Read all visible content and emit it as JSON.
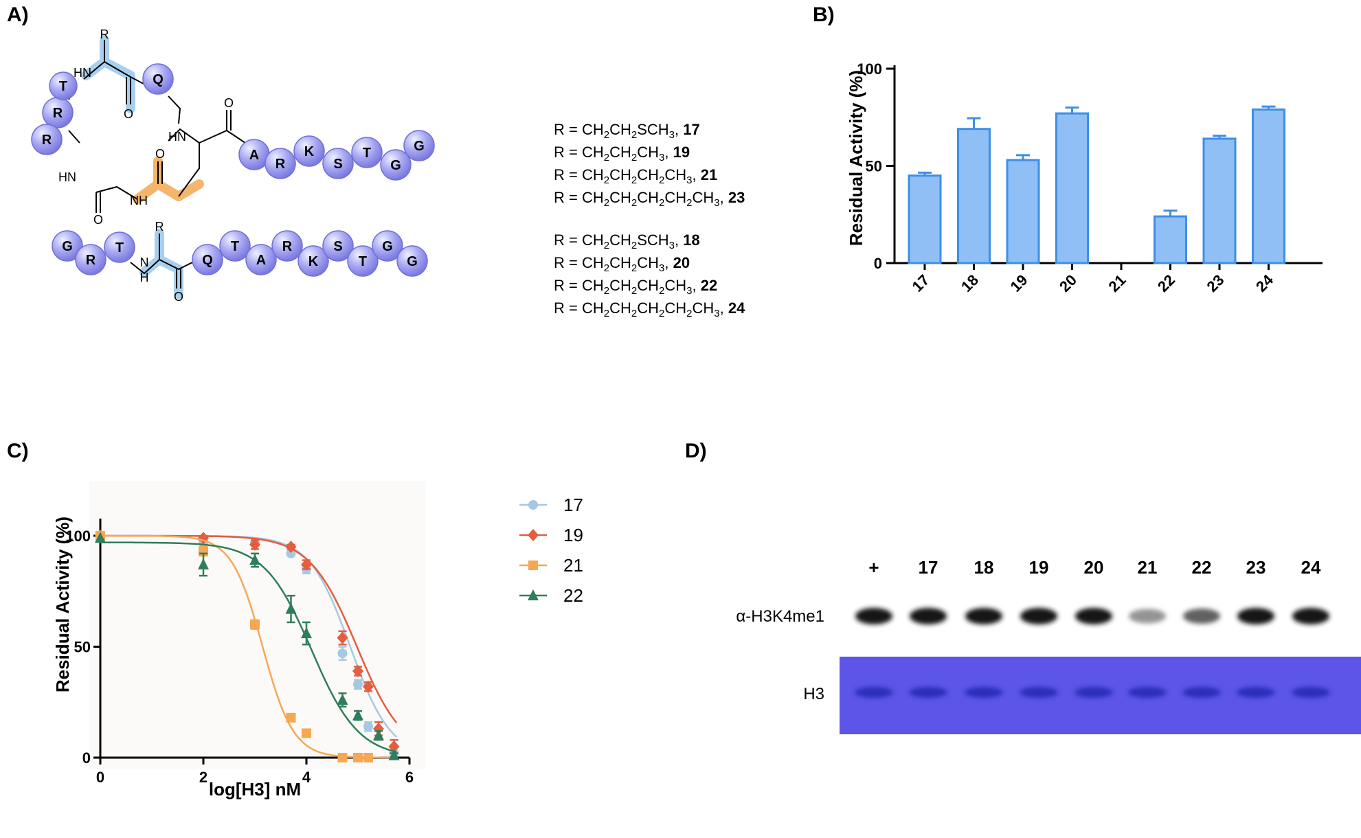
{
  "panels": {
    "a": "A)",
    "b": "B)",
    "c": "C)",
    "d": "D)"
  },
  "structure": {
    "cyclic_residues": [
      "R",
      "Q",
      "T",
      "R",
      "A",
      "R",
      "K",
      "S",
      "T",
      "G",
      "G"
    ],
    "cyclic_groups": [
      "HN",
      "HN",
      "HN",
      "NH",
      "O",
      "O",
      "O",
      "O"
    ],
    "linear_residues": [
      "G",
      "R",
      "T",
      "R",
      "Q",
      "T",
      "A",
      "R",
      "K",
      "S",
      "T",
      "G",
      "G"
    ],
    "linear_groups": [
      "N",
      "H",
      "O"
    ],
    "colors": {
      "residue": "#9c9cf0",
      "blue_highlight": "#a8d0ee",
      "orange_highlight": "#f5b56b"
    }
  },
  "r_groups": {
    "group1": [
      {
        "prefix": "R = CH",
        "chain": [
          "2",
          "CH",
          "2",
          "SCH",
          "3"
        ],
        "num": "17"
      },
      {
        "prefix": "R = CH",
        "chain": [
          "2",
          "CH",
          "2",
          "CH",
          "3"
        ],
        "num": "19"
      },
      {
        "prefix": "R = CH",
        "chain": [
          "2",
          "CH",
          "2",
          "CH",
          "2",
          "CH",
          "3"
        ],
        "num": "21"
      },
      {
        "prefix": "R = CH",
        "chain": [
          "2",
          "CH",
          "2",
          "CH",
          "2",
          "CH",
          "2",
          "CH",
          "3"
        ],
        "num": "23"
      }
    ],
    "group2": [
      {
        "prefix": "R = CH",
        "chain": [
          "2",
          "CH",
          "2",
          "SCH",
          "3"
        ],
        "num": "18"
      },
      {
        "prefix": "R = CH",
        "chain": [
          "2",
          "CH",
          "2",
          "CH",
          "3"
        ],
        "num": "20"
      },
      {
        "prefix": "R = CH",
        "chain": [
          "2",
          "CH",
          "2",
          "CH",
          "2",
          "CH",
          "3"
        ],
        "num": "22"
      },
      {
        "prefix": "R = CH",
        "chain": [
          "2",
          "CH",
          "2",
          "CH",
          "2",
          "CH",
          "2",
          "CH",
          "3"
        ],
        "num": "24"
      }
    ]
  },
  "chart_data": [
    {
      "type": "bar",
      "panel": "B",
      "title": "",
      "xlabel": "",
      "ylabel": "Residual Activity (%)",
      "categories": [
        "17",
        "18",
        "19",
        "20",
        "21",
        "22",
        "23",
        "24"
      ],
      "values": [
        45,
        69,
        53,
        77,
        0,
        24,
        64,
        79
      ],
      "errors": [
        1.5,
        5.5,
        2.5,
        3,
        0,
        3,
        1.5,
        1.5
      ],
      "ylim": [
        0,
        100
      ],
      "yticks": [
        "0",
        "50",
        "100"
      ],
      "color": "#8fbff5",
      "edge_color": "#3d8fe6"
    },
    {
      "type": "line",
      "panel": "C",
      "title": "",
      "xlabel": "log[H3] nM",
      "ylabel": "Residual Activity (%)",
      "xlim": [
        0,
        6
      ],
      "ylim": [
        0,
        100
      ],
      "xticks": [
        "0",
        "2",
        "4",
        "6"
      ],
      "yticks": [
        "0",
        "50",
        "100"
      ],
      "legend_position": "right",
      "series": [
        {
          "name": "17",
          "marker": "circle",
          "color": "#a6c8e2",
          "x": [
            0,
            2,
            3,
            3.7,
            4,
            4.7,
            5,
            5.2,
            5.7
          ],
          "y": [
            100,
            97,
            97,
            92,
            85,
            47,
            33,
            14,
            2
          ],
          "err": [
            0,
            1,
            1,
            1,
            2,
            3,
            2,
            2,
            1
          ],
          "fit": {
            "top": 100,
            "bottom": 0,
            "logec50": 4.85,
            "hill": 1.1
          }
        },
        {
          "name": "19",
          "marker": "diamond",
          "color": "#e35d3e",
          "x": [
            0,
            2,
            3,
            3.7,
            4,
            4.7,
            5,
            5.2,
            5.4,
            5.7
          ],
          "y": [
            100,
            99,
            96,
            95,
            87,
            54,
            39,
            32,
            13,
            5
          ],
          "err": [
            0,
            1,
            2,
            1,
            2,
            3,
            2,
            2,
            3,
            3
          ],
          "fit": {
            "top": 100,
            "bottom": 0,
            "logec50": 4.98,
            "hill": 0.95
          }
        },
        {
          "name": "21",
          "marker": "square",
          "color": "#f5a853",
          "x": [
            0,
            2,
            3,
            3.7,
            4,
            4.7,
            5,
            5.2
          ],
          "y": [
            100,
            93,
            60,
            18,
            11,
            0,
            0,
            0
          ],
          "err": [
            0,
            2,
            2,
            1,
            1,
            0,
            0,
            0
          ],
          "fit": {
            "top": 100,
            "bottom": 0,
            "logec50": 3.15,
            "hill": 1.45
          }
        },
        {
          "name": "22",
          "marker": "triangle",
          "color": "#2e7d5b",
          "x": [
            0,
            2,
            3,
            3.7,
            4,
            4.7,
            5,
            5.4,
            5.7
          ],
          "y": [
            99,
            87,
            89,
            67,
            56,
            26,
            19,
            10,
            1
          ],
          "err": [
            0,
            5,
            3,
            6,
            5,
            3,
            2,
            2,
            1
          ],
          "fit": {
            "top": 97,
            "bottom": 0,
            "logec50": 4.1,
            "hill": 0.95
          }
        }
      ]
    }
  ],
  "gel": {
    "lanes": [
      "+",
      "17",
      "18",
      "19",
      "20",
      "21",
      "22",
      "23",
      "24"
    ],
    "blot_label": "α-H3K4me1",
    "stain_label": "H3",
    "blot_intensity": [
      1,
      1,
      1,
      1,
      1,
      0.25,
      0.55,
      1,
      1
    ],
    "stain_color": "#5c55e8",
    "band_color": "#2c2fb8"
  }
}
